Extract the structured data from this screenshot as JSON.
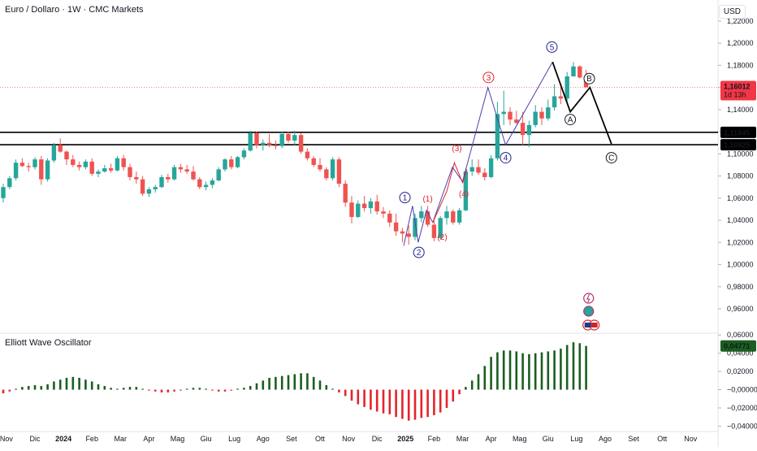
{
  "header": {
    "title": "Euro / Dollaro · 1W · CMC Markets",
    "currency": "USD"
  },
  "oscillator": {
    "title": "Elliott Wave Oscillator",
    "last_value_label": "0,04771",
    "yticks": [
      "0,06000",
      "0,04000",
      "0,02000",
      "−0,00000",
      "−0,02000",
      "−0,04000"
    ],
    "range": [
      -0.045,
      0.062
    ]
  },
  "price_tags": {
    "current": "1,16012",
    "countdown": "1d 13h",
    "level1": "1,11945",
    "level2": "1,10825"
  },
  "levels": [
    1.11945,
    1.10825
  ],
  "chart_data": {
    "type": "candlestick",
    "ylim": [
      0.938,
      1.239
    ],
    "yticks": [
      "1,22000",
      "1,20000",
      "1,18000",
      "1,16000",
      "1,14000",
      "1,12000",
      "1,10000",
      "1,08000",
      "1,06000",
      "1,04000",
      "1,02000",
      "1,00000",
      "0,98000",
      "0,96000"
    ],
    "ytick_values": [
      1.22,
      1.2,
      1.18,
      1.16,
      1.14,
      1.12,
      1.1,
      1.08,
      1.06,
      1.04,
      1.02,
      1.0,
      0.98,
      0.96
    ],
    "xticks": [
      "Nov",
      "Dic",
      "2024",
      "Feb",
      "Mar",
      "Apr",
      "Mag",
      "Giu",
      "Lug",
      "Ago",
      "Set",
      "Ott",
      "Nov",
      "Dic",
      "2025",
      "Feb",
      "Mar",
      "Apr",
      "Mag",
      "Giu",
      "Lug",
      "Ago",
      "Set",
      "Ott",
      "Nov",
      "D"
    ],
    "xtick_weeks": [
      0.5,
      5,
      9.5,
      14,
      18.5,
      23,
      27.5,
      32,
      36.5,
      41,
      45.5,
      50,
      54.5,
      59,
      63.5,
      68,
      72.5,
      77,
      81.5,
      86,
      90.5,
      95,
      99.5,
      104,
      108.5,
      113
    ],
    "candles": [
      [
        1.06,
        1.073,
        1.056,
        1.07
      ],
      [
        1.07,
        1.08,
        1.068,
        1.078
      ],
      [
        1.078,
        1.095,
        1.076,
        1.092
      ],
      [
        1.092,
        1.096,
        1.088,
        1.089
      ],
      [
        1.089,
        1.092,
        1.084,
        1.088
      ],
      [
        1.088,
        1.097,
        1.086,
        1.095
      ],
      [
        1.095,
        1.098,
        1.072,
        1.077
      ],
      [
        1.077,
        1.096,
        1.075,
        1.094
      ],
      [
        1.094,
        1.11,
        1.092,
        1.108
      ],
      [
        1.108,
        1.114,
        1.101,
        1.102
      ],
      [
        1.102,
        1.103,
        1.09,
        1.095
      ],
      [
        1.095,
        1.099,
        1.088,
        1.09
      ],
      [
        1.09,
        1.093,
        1.085,
        1.088
      ],
      [
        1.088,
        1.095,
        1.086,
        1.093
      ],
      [
        1.093,
        1.096,
        1.08,
        1.082
      ],
      [
        1.082,
        1.086,
        1.079,
        1.084
      ],
      [
        1.084,
        1.09,
        1.083,
        1.087
      ],
      [
        1.087,
        1.091,
        1.083,
        1.085
      ],
      [
        1.085,
        1.098,
        1.084,
        1.096
      ],
      [
        1.096,
        1.099,
        1.085,
        1.088
      ],
      [
        1.088,
        1.091,
        1.076,
        1.079
      ],
      [
        1.079,
        1.084,
        1.073,
        1.077
      ],
      [
        1.077,
        1.08,
        1.062,
        1.064
      ],
      [
        1.064,
        1.07,
        1.061,
        1.068
      ],
      [
        1.068,
        1.072,
        1.065,
        1.07
      ],
      [
        1.07,
        1.081,
        1.069,
        1.079
      ],
      [
        1.079,
        1.082,
        1.074,
        1.077
      ],
      [
        1.077,
        1.09,
        1.076,
        1.088
      ],
      [
        1.088,
        1.091,
        1.083,
        1.086
      ],
      [
        1.086,
        1.09,
        1.082,
        1.084
      ],
      [
        1.084,
        1.089,
        1.076,
        1.077
      ],
      [
        1.077,
        1.079,
        1.068,
        1.07
      ],
      [
        1.07,
        1.075,
        1.067,
        1.072
      ],
      [
        1.072,
        1.078,
        1.069,
        1.076
      ],
      [
        1.076,
        1.088,
        1.075,
        1.086
      ],
      [
        1.086,
        1.096,
        1.084,
        1.095
      ],
      [
        1.095,
        1.098,
        1.086,
        1.088
      ],
      [
        1.088,
        1.098,
        1.087,
        1.097
      ],
      [
        1.097,
        1.105,
        1.095,
        1.103
      ],
      [
        1.103,
        1.121,
        1.102,
        1.119
      ],
      [
        1.119,
        1.12,
        1.105,
        1.108
      ],
      [
        1.108,
        1.113,
        1.103,
        1.11
      ],
      [
        1.11,
        1.118,
        1.106,
        1.108
      ],
      [
        1.108,
        1.112,
        1.104,
        1.107
      ],
      [
        1.107,
        1.12,
        1.105,
        1.118
      ],
      [
        1.118,
        1.12,
        1.11,
        1.112
      ],
      [
        1.112,
        1.121,
        1.108,
        1.117
      ],
      [
        1.117,
        1.119,
        1.1,
        1.102
      ],
      [
        1.102,
        1.105,
        1.094,
        1.096
      ],
      [
        1.096,
        1.098,
        1.088,
        1.09
      ],
      [
        1.09,
        1.096,
        1.084,
        1.086
      ],
      [
        1.086,
        1.088,
        1.076,
        1.078
      ],
      [
        1.078,
        1.097,
        1.076,
        1.095
      ],
      [
        1.095,
        1.097,
        1.07,
        1.073
      ],
      [
        1.073,
        1.076,
        1.052,
        1.056
      ],
      [
        1.056,
        1.062,
        1.037,
        1.043
      ],
      [
        1.043,
        1.058,
        1.042,
        1.055
      ],
      [
        1.055,
        1.062,
        1.048,
        1.051
      ],
      [
        1.051,
        1.06,
        1.046,
        1.057
      ],
      [
        1.057,
        1.063,
        1.045,
        1.048
      ],
      [
        1.048,
        1.052,
        1.042,
        1.046
      ],
      [
        1.046,
        1.049,
        1.034,
        1.038
      ],
      [
        1.038,
        1.046,
        1.026,
        1.03
      ],
      [
        1.03,
        1.033,
        1.02,
        1.028
      ],
      [
        1.028,
        1.035,
        1.018,
        1.025
      ],
      [
        1.025,
        1.046,
        1.022,
        1.042
      ],
      [
        1.042,
        1.053,
        1.038,
        1.048
      ],
      [
        1.048,
        1.053,
        1.034,
        1.036
      ],
      [
        1.036,
        1.04,
        1.021,
        1.024
      ],
      [
        1.024,
        1.044,
        1.023,
        1.042
      ],
      [
        1.042,
        1.053,
        1.036,
        1.048
      ],
      [
        1.048,
        1.05,
        1.036,
        1.038
      ],
      [
        1.038,
        1.051,
        1.036,
        1.049
      ],
      [
        1.049,
        1.087,
        1.048,
        1.084
      ],
      [
        1.084,
        1.095,
        1.08,
        1.088
      ],
      [
        1.088,
        1.095,
        1.081,
        1.083
      ],
      [
        1.083,
        1.087,
        1.076,
        1.079
      ],
      [
        1.079,
        1.099,
        1.078,
        1.096
      ],
      [
        1.096,
        1.147,
        1.094,
        1.136
      ],
      [
        1.136,
        1.157,
        1.126,
        1.138
      ],
      [
        1.138,
        1.142,
        1.126,
        1.131
      ],
      [
        1.131,
        1.139,
        1.127,
        1.128
      ],
      [
        1.128,
        1.138,
        1.108,
        1.117
      ],
      [
        1.117,
        1.13,
        1.106,
        1.126
      ],
      [
        1.126,
        1.144,
        1.124,
        1.138
      ],
      [
        1.138,
        1.142,
        1.126,
        1.132
      ],
      [
        1.132,
        1.149,
        1.13,
        1.142
      ],
      [
        1.142,
        1.163,
        1.139,
        1.152
      ],
      [
        1.152,
        1.161,
        1.145,
        1.15
      ],
      [
        1.15,
        1.174,
        1.147,
        1.17
      ],
      [
        1.17,
        1.183,
        1.17,
        1.179
      ],
      [
        1.179,
        1.18,
        1.168,
        1.169
      ],
      [
        1.169,
        1.176,
        1.16,
        1.1601
      ]
    ],
    "wave_labels": [
      {
        "text": "1",
        "style": "circle",
        "color": "#1e1e8c",
        "week": 63.4,
        "price": 1.0605
      },
      {
        "text": "2",
        "style": "circle",
        "color": "#1e1e8c",
        "week": 65.6,
        "price": 1.011
      },
      {
        "text": "(1)",
        "style": "paren",
        "color": "#e3242b",
        "week": 67.0,
        "price": 1.0595
      },
      {
        "text": "(2)",
        "style": "paren",
        "color": "#e3242b",
        "week": 69.3,
        "price": 1.025
      },
      {
        "text": "(3)",
        "style": "paren",
        "color": "#e3242b",
        "week": 71.6,
        "price": 1.105
      },
      {
        "text": "(4)",
        "style": "paren",
        "color": "#e3242b",
        "week": 72.7,
        "price": 1.064
      },
      {
        "text": "3",
        "style": "circle",
        "color": "#e3242b",
        "week": 76.6,
        "price": 1.169
      },
      {
        "text": "4",
        "style": "circle",
        "color": "#1e1e8c",
        "week": 79.3,
        "price": 1.0965
      },
      {
        "text": "5",
        "style": "circle",
        "color": "#1e1e8c",
        "week": 86.6,
        "price": 1.1965
      },
      {
        "text": "B",
        "style": "circle",
        "color": "#131722",
        "week": 92.5,
        "price": 1.168
      },
      {
        "text": "A",
        "style": "circle",
        "color": "#131722",
        "week": 89.5,
        "price": 1.131
      },
      {
        "text": "C",
        "style": "circle",
        "color": "#131722",
        "week": 96.0,
        "price": 1.0965
      }
    ],
    "impulse_path": [
      [
        63.2,
        1.017
      ],
      [
        64.6,
        1.053
      ],
      [
        65.5,
        1.02
      ],
      [
        66.8,
        1.049
      ],
      [
        67.8,
        1.038
      ],
      [
        70.9,
        1.088
      ],
      [
        72.5,
        1.075
      ],
      [
        76.5,
        1.16
      ],
      [
        79.3,
        1.108
      ],
      [
        86.7,
        1.183
      ]
    ],
    "minor_path": [
      [
        67.8,
        1.038
      ],
      [
        70.0,
        1.066
      ],
      [
        71.2,
        1.092
      ],
      [
        72.5,
        1.074
      ],
      [
        73.2,
        1.086
      ]
    ],
    "projection_path": [
      [
        86.7,
        1.183
      ],
      [
        89.5,
        1.138
      ],
      [
        92.6,
        1.16
      ],
      [
        96.0,
        1.109
      ]
    ],
    "ewo": [
      -0.004,
      -0.002,
      0.001,
      0.003,
      0.004,
      0.005,
      0.004,
      0.006,
      0.009,
      0.011,
      0.013,
      0.014,
      0.013,
      0.011,
      0.009,
      0.006,
      0.004,
      0.002,
      0.001,
      0.002,
      0.003,
      0.003,
      0.001,
      -0.001,
      -0.002,
      -0.003,
      -0.003,
      -0.002,
      -0.001,
      0.001,
      0.002,
      0.002,
      0.001,
      -0.001,
      -0.002,
      -0.002,
      -0.001,
      0.001,
      0.002,
      0.004,
      0.007,
      0.01,
      0.013,
      0.014,
      0.015,
      0.016,
      0.017,
      0.018,
      0.018,
      0.014,
      0.01,
      0.005,
      0.001,
      -0.003,
      -0.007,
      -0.012,
      -0.016,
      -0.019,
      -0.022,
      -0.024,
      -0.026,
      -0.027,
      -0.03,
      -0.032,
      -0.034,
      -0.033,
      -0.031,
      -0.03,
      -0.028,
      -0.025,
      -0.02,
      -0.013,
      -0.005,
      0.003,
      0.01,
      0.017,
      0.026,
      0.036,
      0.041,
      0.043,
      0.043,
      0.042,
      0.04,
      0.039,
      0.04,
      0.041,
      0.042,
      0.043,
      0.045,
      0.049,
      0.052,
      0.051,
      0.048
    ],
    "colors": {
      "bull": "#26a69a",
      "bear": "#ef5350",
      "ewo_pos": "#1b5e20",
      "ewo_neg": "#e3242b",
      "impulse": "#4a3fb0",
      "price_line": "#f23645"
    }
  }
}
